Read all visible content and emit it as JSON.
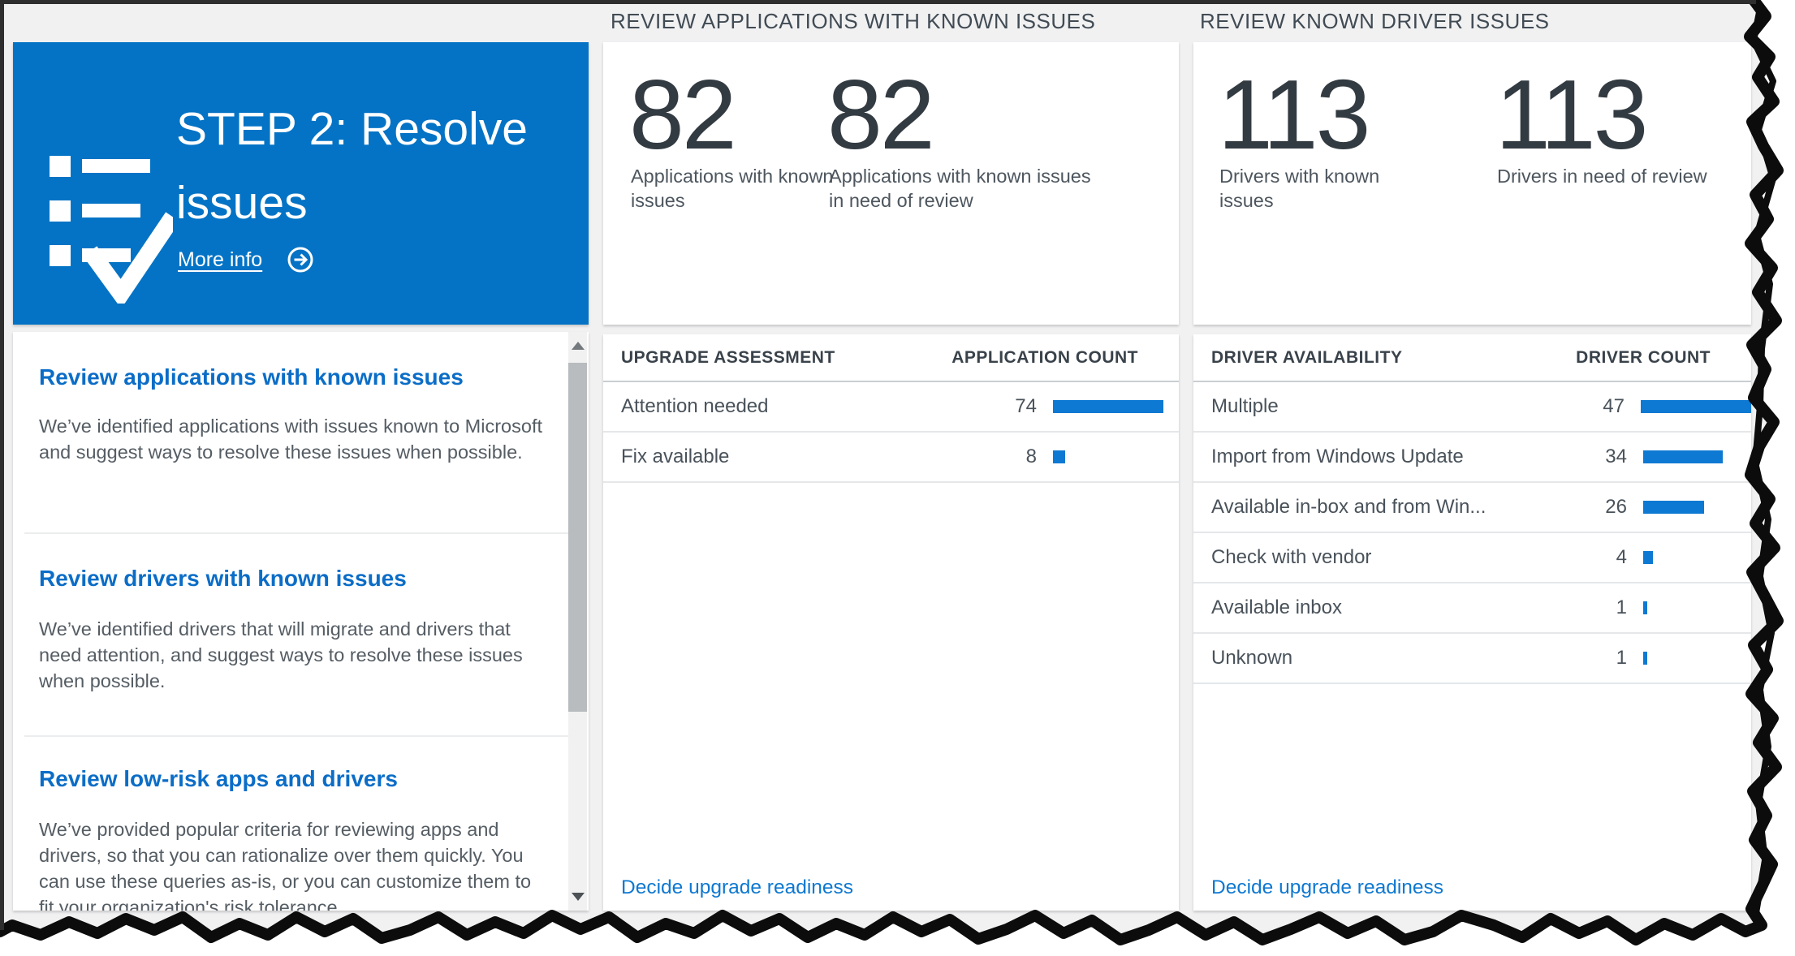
{
  "columns": {
    "apps_header": "REVIEW APPLICATIONS WITH KNOWN ISSUES",
    "drivers_header": "REVIEW KNOWN DRIVER ISSUES"
  },
  "step_tile": {
    "title": "STEP 2: Resolve issues",
    "more_info_label": "More info",
    "tile_color": "#0473c5",
    "icon": "checklist-check-icon"
  },
  "review_panel": {
    "sections": [
      {
        "title": "Review applications with known issues",
        "body": "We’ve identified applications with issues known to Microsoft and suggest ways to resolve these issues when possible."
      },
      {
        "title": "Review drivers with known issues",
        "body": "We’ve identified drivers that will migrate and drivers that need attention, and suggest ways to resolve these issues when possible."
      },
      {
        "title": "Review low-risk apps and drivers",
        "body": "We’ve provided popular criteria for reviewing apps and drivers, so that you can rationalize over them quickly. You can use these queries as-is, or you can customize them to fit your organization's risk tolerance."
      }
    ]
  },
  "apps_card": {
    "stats": [
      {
        "value": "82",
        "label": "Applications with known issues"
      },
      {
        "value": "82",
        "label": "Applications with known issues in need of review"
      }
    ]
  },
  "drivers_card": {
    "stats": [
      {
        "value": "113",
        "label": "Drivers with known issues"
      },
      {
        "value": "113",
        "label": "Drivers in need of review"
      }
    ]
  },
  "apps_table": {
    "assessment_header": "UPGRADE ASSESSMENT",
    "count_header": "APPLICATION COUNT",
    "max_count": 74,
    "bar_color": "#0e79d2",
    "rows": [
      {
        "label": "Attention needed",
        "count": 74
      },
      {
        "label": "Fix available",
        "count": 8
      }
    ],
    "footer_link": "Decide upgrade readiness"
  },
  "drivers_table": {
    "availability_header": "DRIVER AVAILABILITY",
    "count_header": "DRIVER COUNT",
    "max_count": 47,
    "bar_color": "#0e79d2",
    "rows": [
      {
        "label": "Multiple",
        "count": 47
      },
      {
        "label": "Import from Windows Update",
        "count": 34
      },
      {
        "label": "Available in-box and from Win...",
        "count": 26
      },
      {
        "label": "Check with vendor",
        "count": 4
      },
      {
        "label": "Available inbox",
        "count": 1
      },
      {
        "label": "Unknown",
        "count": 1
      }
    ],
    "footer_link": "Decide upgrade readiness"
  }
}
